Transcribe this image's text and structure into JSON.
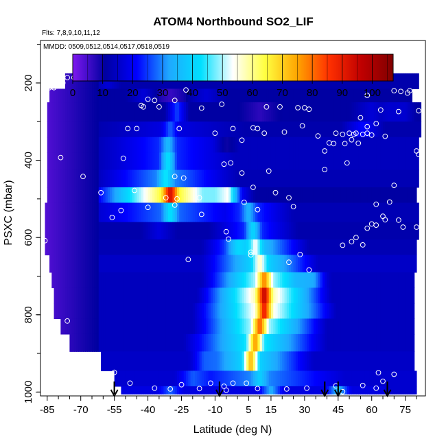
{
  "chart_data": {
    "type": "heatmap",
    "title": "ATOM4 Northbound SO2_LIF",
    "subtitle_flights": "Flts: 7,8,9,10,11,12",
    "subtitle_dates": "MMDD: 0509,0512,0514,0517,0518,0519",
    "xlabel": "Latitude (deg N)",
    "ylabel": "PSXC (mbar)",
    "xlim": [
      -88,
      84
    ],
    "ylim": [
      1010,
      90
    ],
    "x_ticks": [
      -85,
      -70,
      -55,
      -40,
      -25,
      -10,
      5,
      15,
      30,
      45,
      60,
      75
    ],
    "x_minor_ticks": [
      -80,
      -75,
      -65,
      -60,
      -50,
      -45,
      -35,
      -30,
      -20,
      -15,
      -5,
      0,
      10,
      20,
      25,
      35,
      40,
      50,
      55,
      65,
      70,
      80
    ],
    "y_ticks": [
      200,
      400,
      600,
      800,
      1000
    ],
    "colorbar": {
      "min": 0,
      "max": 107,
      "ticks": [
        0,
        10,
        20,
        30,
        40,
        50,
        60,
        70,
        80,
        90,
        100
      ],
      "colors": [
        "#7f18f0",
        "#0000a0",
        "#0000ff",
        "#1fa8ff",
        "#00e0ff",
        "#ffffff",
        "#ffff40",
        "#ffa500",
        "#ff3000",
        "#c00000",
        "#800000"
      ]
    },
    "profile_markers_lat": [
      -55,
      -8,
      39,
      45,
      67
    ],
    "layers": [
      {
        "p": [
          175,
          215
        ],
        "x0": -77,
        "x1": 81,
        "base": 12,
        "features": [
          [
            -58,
            6,
            0,
            0,
            5
          ]
        ]
      },
      {
        "p": [
          215,
          250
        ],
        "x0": -84,
        "x1": 78,
        "base": 11,
        "features": [
          [
            -42,
            8,
            0,
            0,
            6
          ],
          [
            -30,
            10,
            0,
            0,
            -5
          ],
          [
            -14,
            10,
            0,
            0,
            6
          ]
        ]
      },
      {
        "p": [
          250,
          300
        ],
        "x0": -85,
        "x1": 82,
        "base": 11,
        "features": [
          [
            -27,
            6,
            14,
            26,
            10
          ],
          [
            10,
            10,
            0,
            0,
            -4
          ],
          [
            60,
            10,
            0,
            0,
            6
          ],
          [
            72,
            8,
            0,
            0,
            8
          ]
        ]
      },
      {
        "p": [
          300,
          340
        ],
        "x0": -85,
        "x1": 82,
        "base": 12,
        "features": [
          [
            -30,
            4,
            30,
            28,
            18
          ],
          [
            56,
            10,
            0,
            0,
            10
          ]
        ]
      },
      {
        "p": [
          340,
          380
        ],
        "x0": -85,
        "x1": 81,
        "base": 14,
        "features": [
          [
            -31,
            4,
            26,
            36,
            24
          ],
          [
            -5,
            6,
            0,
            0,
            -6
          ]
        ]
      },
      {
        "p": [
          380,
          425
        ],
        "x0": -85,
        "x1": 81,
        "base": 14,
        "features": [
          [
            -31,
            4,
            26,
            44,
            24
          ]
        ]
      },
      {
        "p": [
          425,
          470
        ],
        "x0": -85,
        "x1": 81,
        "base": 13,
        "features": [
          [
            -32,
            4,
            28,
            45,
            30
          ]
        ]
      },
      {
        "p": [
          470,
          510
        ],
        "x0": -85,
        "x1": 80,
        "base": 11,
        "features": [
          [
            -45,
            10,
            0,
            0,
            14
          ],
          [
            -30,
            4,
            34,
            95,
            65
          ],
          [
            -16,
            6,
            14,
            48,
            48
          ],
          [
            -4,
            6,
            0,
            0,
            22
          ]
        ]
      },
      {
        "p": [
          510,
          560
        ],
        "x0": -86,
        "x1": 81,
        "base": 13,
        "features": [
          [
            -30,
            4,
            36,
            44,
            28
          ],
          [
            5,
            4,
            16,
            35,
            24
          ]
        ]
      },
      {
        "p": [
          560,
          605
        ],
        "x0": -86,
        "x1": 81,
        "base": 12,
        "features": [
          [
            -35,
            8,
            0,
            0,
            6
          ],
          [
            7,
            4,
            16,
            42,
            24
          ]
        ]
      },
      {
        "p": [
          605,
          645
        ],
        "x0": -86,
        "x1": 80,
        "base": 13,
        "features": [
          [
            8,
            4,
            20,
            55,
            36
          ],
          [
            0,
            6,
            0,
            0,
            10
          ]
        ]
      },
      {
        "p": [
          645,
          690
        ],
        "x0": -84,
        "x1": 80,
        "base": 15,
        "features": [
          [
            10,
            4,
            22,
            58,
            40
          ]
        ]
      },
      {
        "p": [
          690,
          730
        ],
        "x0": -83,
        "x1": 79,
        "base": 14,
        "features": [
          [
            12,
            4,
            24,
            80,
            50
          ],
          [
            34,
            8,
            0,
            0,
            10
          ]
        ]
      },
      {
        "p": [
          730,
          770
        ],
        "x0": -82,
        "x1": 79,
        "base": 14,
        "features": [
          [
            12,
            4,
            26,
            98,
            58
          ]
        ]
      },
      {
        "p": [
          770,
          810
        ],
        "x0": -82,
        "x1": 79,
        "base": 14,
        "features": [
          [
            12,
            4,
            28,
            92,
            55
          ]
        ]
      },
      {
        "p": [
          810,
          850
        ],
        "x0": -79,
        "x1": 79,
        "base": 14,
        "features": [
          [
            10,
            4,
            26,
            84,
            50
          ]
        ]
      },
      {
        "p": [
          850,
          895
        ],
        "x0": -75,
        "x1": 79,
        "base": 14,
        "features": [
          [
            8,
            4,
            28,
            78,
            44
          ]
        ]
      },
      {
        "p": [
          895,
          945
        ],
        "x0": -61,
        "x1": 79,
        "base": 15,
        "features": [
          [
            6,
            4,
            24,
            75,
            40
          ],
          [
            -15,
            6,
            0,
            0,
            5
          ]
        ]
      },
      {
        "p": [
          945,
          985
        ],
        "x0": -55,
        "x1": 80,
        "base": 16,
        "features": [
          [
            10,
            4,
            34,
            40,
            30
          ],
          [
            -20,
            8,
            0,
            0,
            8
          ]
        ]
      },
      {
        "p": [
          985,
          1005
        ],
        "x0": -52,
        "x1": 80,
        "base": 18,
        "features": [
          [
            15,
            6,
            0,
            0,
            16
          ],
          [
            45,
            6,
            0,
            0,
            18
          ],
          [
            -30,
            6,
            0,
            0,
            10
          ]
        ]
      }
    ],
    "points": [
      [
        -76,
        186
      ],
      [
        -73,
        186
      ],
      [
        -70,
        186
      ],
      [
        -67,
        186
      ],
      [
        -80,
        200
      ],
      [
        -78,
        200
      ],
      [
        -82,
        212
      ],
      [
        -84,
        212
      ],
      [
        -37,
        245
      ],
      [
        -40,
        242
      ],
      [
        -43,
        258
      ],
      [
        -42,
        262
      ],
      [
        -35,
        262
      ],
      [
        -28,
        245
      ],
      [
        -23,
        218
      ],
      [
        -16,
        265
      ],
      [
        -7,
        255
      ],
      [
        13,
        262
      ],
      [
        19,
        262
      ],
      [
        27,
        264
      ],
      [
        30,
        264
      ],
      [
        58,
        232
      ],
      [
        77,
        220
      ],
      [
        76,
        226
      ],
      [
        73,
        222
      ],
      [
        70,
        220
      ],
      [
        81,
        272
      ],
      [
        85,
        271
      ],
      [
        72,
        274
      ],
      [
        64,
        270
      ],
      [
        55,
        290
      ],
      [
        58,
        313
      ],
      [
        62,
        305
      ],
      [
        -45,
        318
      ],
      [
        -49,
        318
      ],
      [
        -2,
        318
      ],
      [
        2,
        348
      ],
      [
        -26,
        318
      ],
      [
        -10,
        330
      ],
      [
        29,
        311
      ],
      [
        32,
        268
      ],
      [
        12,
        330
      ],
      [
        21,
        327
      ],
      [
        7,
        316
      ],
      [
        9,
        318
      ],
      [
        36,
        337
      ],
      [
        39,
        376
      ],
      [
        41,
        355
      ],
      [
        43,
        357
      ],
      [
        44,
        330
      ],
      [
        47,
        333
      ],
      [
        48,
        357
      ],
      [
        50,
        330
      ],
      [
        51,
        347
      ],
      [
        52,
        333
      ],
      [
        53,
        330
      ],
      [
        54,
        356
      ],
      [
        56,
        333
      ],
      [
        58,
        330
      ],
      [
        60,
        335
      ],
      [
        80,
        376
      ],
      [
        66,
        338
      ],
      [
        -69,
        442
      ],
      [
        -79,
        393
      ],
      [
        -51,
        395
      ],
      [
        -28,
        442
      ],
      [
        -24,
        446
      ],
      [
        -6,
        410
      ],
      [
        -3,
        407
      ],
      [
        2,
        433
      ],
      [
        14,
        428
      ],
      [
        39,
        424
      ],
      [
        49,
        407
      ],
      [
        70,
        465
      ],
      [
        81,
        385
      ],
      [
        -46,
        478
      ],
      [
        -61,
        484
      ],
      [
        -32,
        497
      ],
      [
        -27,
        500
      ],
      [
        -17,
        497
      ],
      [
        -52,
        530
      ],
      [
        -56,
        548
      ],
      [
        -40,
        522
      ],
      [
        -28,
        516
      ],
      [
        -16,
        540
      ],
      [
        -5,
        585
      ],
      [
        -4,
        604
      ],
      [
        7,
        470
      ],
      [
        17,
        484
      ],
      [
        23,
        497
      ],
      [
        25,
        520
      ],
      [
        9,
        528
      ],
      [
        3,
        509
      ],
      [
        47,
        620
      ],
      [
        56,
        619
      ],
      [
        51,
        611
      ],
      [
        53,
        600
      ],
      [
        58,
        576
      ],
      [
        66,
        554
      ],
      [
        72,
        555
      ],
      [
        68,
        508
      ],
      [
        62,
        514
      ],
      [
        74,
        573
      ],
      [
        80,
        573
      ],
      [
        65,
        545
      ],
      [
        60,
        565
      ],
      [
        62,
        568
      ],
      [
        6,
        638
      ],
      [
        6,
        645
      ],
      [
        23,
        664
      ],
      [
        28,
        644
      ],
      [
        32,
        684
      ],
      [
        -22,
        657
      ],
      [
        -86,
        608
      ],
      [
        -76,
        816
      ],
      [
        -55,
        949
      ],
      [
        -48,
        977
      ],
      [
        -37,
        990
      ],
      [
        -30,
        992
      ],
      [
        -25,
        981
      ],
      [
        -12,
        977
      ],
      [
        -17,
        991
      ],
      [
        -6,
        985
      ],
      [
        -2,
        977
      ],
      [
        4,
        977
      ],
      [
        9,
        991
      ],
      [
        22,
        992
      ],
      [
        31,
        990
      ],
      [
        44,
        984
      ],
      [
        47,
        999
      ],
      [
        56,
        983
      ],
      [
        63,
        950
      ],
      [
        65,
        972
      ],
      [
        62,
        990
      ],
      [
        -5,
        995
      ],
      [
        -59,
        975
      ],
      [
        70,
        954
      ]
    ]
  }
}
